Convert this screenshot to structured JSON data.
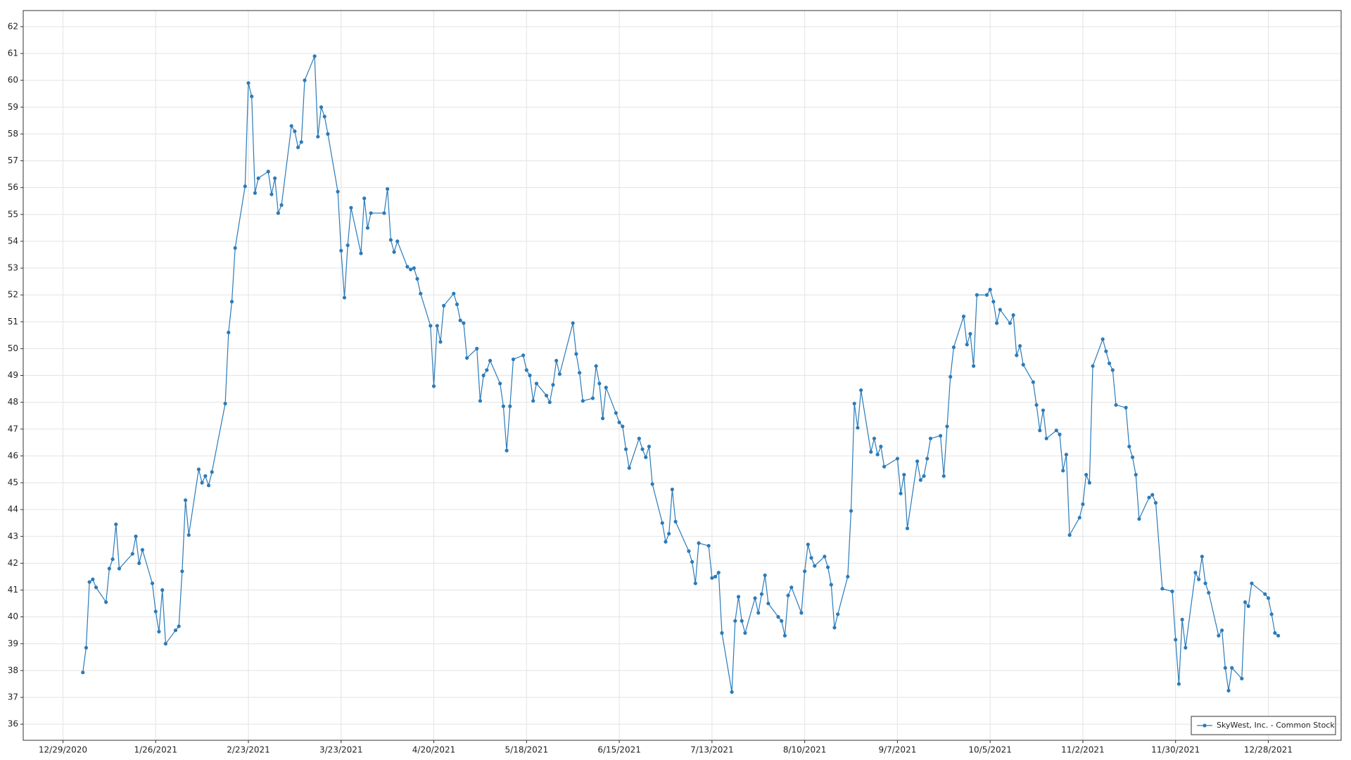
{
  "chart_data": {
    "type": "line",
    "x": [
      "1/4/2021",
      "1/5/2021",
      "1/6/2021",
      "1/7/2021",
      "1/8/2021",
      "1/11/2021",
      "1/12/2021",
      "1/13/2021",
      "1/14/2021",
      "1/15/2021",
      "1/19/2021",
      "1/20/2021",
      "1/21/2021",
      "1/22/2021",
      "1/25/2021",
      "1/26/2021",
      "1/27/2021",
      "1/28/2021",
      "1/29/2021",
      "2/1/2021",
      "2/2/2021",
      "2/3/2021",
      "2/4/2021",
      "2/5/2021",
      "2/8/2021",
      "2/9/2021",
      "2/10/2021",
      "2/11/2021",
      "2/12/2021",
      "2/16/2021",
      "2/17/2021",
      "2/18/2021",
      "2/19/2021",
      "2/22/2021",
      "2/23/2021",
      "2/24/2021",
      "2/25/2021",
      "2/26/2021",
      "3/1/2021",
      "3/2/2021",
      "3/3/2021",
      "3/4/2021",
      "3/5/2021",
      "3/8/2021",
      "3/9/2021",
      "3/10/2021",
      "3/11/2021",
      "3/12/2021",
      "3/15/2021",
      "3/16/2021",
      "3/17/2021",
      "3/18/2021",
      "3/19/2021",
      "3/22/2021",
      "3/23/2021",
      "3/24/2021",
      "3/25/2021",
      "3/26/2021",
      "3/29/2021",
      "3/30/2021",
      "3/31/2021",
      "4/1/2021",
      "4/5/2021",
      "4/6/2021",
      "4/7/2021",
      "4/8/2021",
      "4/9/2021",
      "4/12/2021",
      "4/13/2021",
      "4/14/2021",
      "4/15/2021",
      "4/16/2021",
      "4/19/2021",
      "4/20/2021",
      "4/21/2021",
      "4/22/2021",
      "4/23/2021",
      "4/26/2021",
      "4/27/2021",
      "4/28/2021",
      "4/29/2021",
      "4/30/2021",
      "5/3/2021",
      "5/4/2021",
      "5/5/2021",
      "5/6/2021",
      "5/7/2021",
      "5/10/2021",
      "5/11/2021",
      "5/12/2021",
      "5/13/2021",
      "5/14/2021",
      "5/17/2021",
      "5/18/2021",
      "5/19/2021",
      "5/20/2021",
      "5/21/2021",
      "5/24/2021",
      "5/25/2021",
      "5/26/2021",
      "5/27/2021",
      "5/28/2021",
      "6/1/2021",
      "6/2/2021",
      "6/3/2021",
      "6/4/2021",
      "6/7/2021",
      "6/8/2021",
      "6/9/2021",
      "6/10/2021",
      "6/11/2021",
      "6/14/2021",
      "6/15/2021",
      "6/16/2021",
      "6/17/2021",
      "6/18/2021",
      "6/21/2021",
      "6/22/2021",
      "6/23/2021",
      "6/24/2021",
      "6/25/2021",
      "6/28/2021",
      "6/29/2021",
      "6/30/2021",
      "7/1/2021",
      "7/2/2021",
      "7/6/2021",
      "7/7/2021",
      "7/8/2021",
      "7/9/2021",
      "7/12/2021",
      "7/13/2021",
      "7/14/2021",
      "7/15/2021",
      "7/16/2021",
      "7/19/2021",
      "7/20/2021",
      "7/21/2021",
      "7/22/2021",
      "7/23/2021",
      "7/26/2021",
      "7/27/2021",
      "7/28/2021",
      "7/29/2021",
      "7/30/2021",
      "8/2/2021",
      "8/3/2021",
      "8/4/2021",
      "8/5/2021",
      "8/6/2021",
      "8/9/2021",
      "8/10/2021",
      "8/11/2021",
      "8/12/2021",
      "8/13/2021",
      "8/16/2021",
      "8/17/2021",
      "8/18/2021",
      "8/19/2021",
      "8/20/2021",
      "8/23/2021",
      "8/24/2021",
      "8/25/2021",
      "8/26/2021",
      "8/27/2021",
      "8/30/2021",
      "8/31/2021",
      "9/1/2021",
      "9/2/2021",
      "9/3/2021",
      "9/7/2021",
      "9/8/2021",
      "9/9/2021",
      "9/10/2021",
      "9/13/2021",
      "9/14/2021",
      "9/15/2021",
      "9/16/2021",
      "9/17/2021",
      "9/20/2021",
      "9/21/2021",
      "9/22/2021",
      "9/23/2021",
      "9/24/2021",
      "9/27/2021",
      "9/28/2021",
      "9/29/2021",
      "9/30/2021",
      "10/1/2021",
      "10/4/2021",
      "10/5/2021",
      "10/6/2021",
      "10/7/2021",
      "10/8/2021",
      "10/11/2021",
      "10/12/2021",
      "10/13/2021",
      "10/14/2021",
      "10/15/2021",
      "10/18/2021",
      "10/19/2021",
      "10/20/2021",
      "10/21/2021",
      "10/22/2021",
      "10/25/2021",
      "10/26/2021",
      "10/27/2021",
      "10/28/2021",
      "10/29/2021",
      "11/1/2021",
      "11/2/2021",
      "11/3/2021",
      "11/4/2021",
      "11/5/2021",
      "11/8/2021",
      "11/9/2021",
      "11/10/2021",
      "11/11/2021",
      "11/12/2021",
      "11/15/2021",
      "11/16/2021",
      "11/17/2021",
      "11/18/2021",
      "11/19/2021",
      "11/22/2021",
      "11/23/2021",
      "11/24/2021",
      "11/26/2021",
      "11/29/2021",
      "11/30/2021",
      "12/1/2021",
      "12/2/2021",
      "12/3/2021",
      "12/6/2021",
      "12/7/2021",
      "12/8/2021",
      "12/9/2021",
      "12/10/2021",
      "12/13/2021",
      "12/14/2021",
      "12/15/2021",
      "12/16/2021",
      "12/17/2021",
      "12/20/2021",
      "12/21/2021",
      "12/22/2021",
      "12/23/2021",
      "12/27/2021",
      "12/28/2021",
      "12/29/2021",
      "12/30/2021",
      "12/31/2021"
    ],
    "series": [
      {
        "name": "SkyWest, Inc. - Common Stock",
        "color": "#2b7bb9",
        "values": [
          37.93,
          38.85,
          41.3,
          41.4,
          41.1,
          40.55,
          41.8,
          42.15,
          43.45,
          41.8,
          42.35,
          43.0,
          42.0,
          42.5,
          41.25,
          40.2,
          39.45,
          41.0,
          39.0,
          39.5,
          39.65,
          41.7,
          44.35,
          43.05,
          45.5,
          45.0,
          45.25,
          44.9,
          45.4,
          47.95,
          50.6,
          51.75,
          53.75,
          56.05,
          59.9,
          59.4,
          55.8,
          56.35,
          56.6,
          55.75,
          56.35,
          55.05,
          55.35,
          58.3,
          58.1,
          57.5,
          57.7,
          60.0,
          60.9,
          57.9,
          59.0,
          58.65,
          58.0,
          55.85,
          53.65,
          51.9,
          53.85,
          55.25,
          53.55,
          55.6,
          54.5,
          55.05,
          55.05,
          55.95,
          54.05,
          53.6,
          54.0,
          53.05,
          52.95,
          53.0,
          52.6,
          52.05,
          50.85,
          48.6,
          50.85,
          50.25,
          51.6,
          52.05,
          51.65,
          51.05,
          50.95,
          49.65,
          50.0,
          48.05,
          49.0,
          49.2,
          49.55,
          48.7,
          47.85,
          46.2,
          47.85,
          49.6,
          49.75,
          49.2,
          49.0,
          48.05,
          48.7,
          48.25,
          48.0,
          48.65,
          49.55,
          49.05,
          50.95,
          49.8,
          49.1,
          48.05,
          48.15,
          49.35,
          48.7,
          47.4,
          48.55,
          47.6,
          47.25,
          47.1,
          46.25,
          45.55,
          46.65,
          46.25,
          45.95,
          46.35,
          44.95,
          43.5,
          42.8,
          43.1,
          44.75,
          43.55,
          42.45,
          42.05,
          41.25,
          42.75,
          42.65,
          41.45,
          41.5,
          41.65,
          39.4,
          37.2,
          39.85,
          40.75,
          39.85,
          39.4,
          40.7,
          40.15,
          40.85,
          41.55,
          40.5,
          40.0,
          39.85,
          39.3,
          40.8,
          41.1,
          40.15,
          41.7,
          42.7,
          42.2,
          41.9,
          42.25,
          41.85,
          41.2,
          39.6,
          40.1,
          41.5,
          43.95,
          47.95,
          47.05,
          48.45,
          46.15,
          46.65,
          46.05,
          46.35,
          45.6,
          45.9,
          44.6,
          45.3,
          43.3,
          45.8,
          45.1,
          45.25,
          45.9,
          46.65,
          46.75,
          45.25,
          47.1,
          48.95,
          50.05,
          51.2,
          50.15,
          50.55,
          49.35,
          52.0,
          52.0,
          52.2,
          51.75,
          50.95,
          51.45,
          50.95,
          51.25,
          49.75,
          50.1,
          49.4,
          48.75,
          47.9,
          46.95,
          47.7,
          46.65,
          46.95,
          46.8,
          45.45,
          46.05,
          43.05,
          43.7,
          44.2,
          45.3,
          45.0,
          49.35,
          50.35,
          49.9,
          49.45,
          49.2,
          47.9,
          47.8,
          46.35,
          45.95,
          45.3,
          43.65,
          44.45,
          44.55,
          44.25,
          41.05,
          40.95,
          39.15,
          37.5,
          39.9,
          38.85,
          41.65,
          41.4,
          42.25,
          41.25,
          40.9,
          39.3,
          39.5,
          38.1,
          37.25,
          38.1,
          37.7,
          40.55,
          40.4,
          41.25,
          40.85,
          40.7,
          40.1,
          39.4,
          39.3
        ]
      }
    ],
    "xlim": [
      "12/17/2020",
      "1/19/2022"
    ],
    "xticks": [
      "12/29/2020",
      "1/26/2021",
      "2/23/2021",
      "3/23/2021",
      "4/20/2021",
      "5/18/2021",
      "6/15/2021",
      "7/13/2021",
      "8/10/2021",
      "9/7/2021",
      "10/5/2021",
      "11/2/2021",
      "11/30/2021",
      "12/28/2021"
    ],
    "ylim": [
      35.4,
      62.6
    ],
    "yticks": [
      36,
      37,
      38,
      39,
      40,
      41,
      42,
      43,
      44,
      45,
      46,
      47,
      48,
      49,
      50,
      51,
      52,
      53,
      54,
      55,
      56,
      57,
      58,
      59,
      60,
      61,
      62
    ],
    "grid": true,
    "markers": true,
    "legend": "lower right"
  }
}
